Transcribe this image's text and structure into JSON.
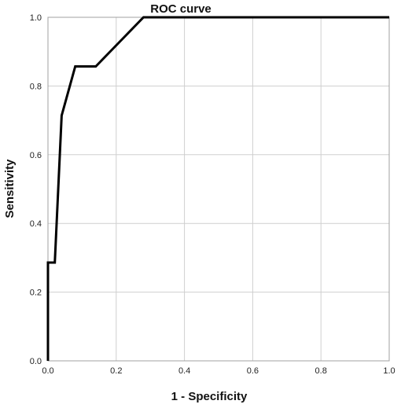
{
  "chart_data": {
    "type": "line",
    "title": "ROC curve",
    "xlabel": "1 - Specificity",
    "ylabel": "Sensitivity",
    "xlim": [
      0,
      1
    ],
    "ylim": [
      0,
      1
    ],
    "x_ticks": [
      "0.0",
      "0.2",
      "0.4",
      "0.6",
      "0.8",
      "1.0"
    ],
    "y_ticks": [
      "0.0",
      "0.2",
      "0.4",
      "0.6",
      "0.8",
      "1.0"
    ],
    "grid": true,
    "legend": "none",
    "series": [
      {
        "color": "#000000",
        "x": [
          0.0,
          0.0,
          0.0,
          0.0,
          0.02,
          0.04,
          0.08,
          0.14,
          0.28,
          1.0
        ],
        "y": [
          0.0,
          0.14,
          0.18,
          0.286,
          0.286,
          0.714,
          0.857,
          0.857,
          1.0,
          1.0
        ]
      }
    ]
  }
}
